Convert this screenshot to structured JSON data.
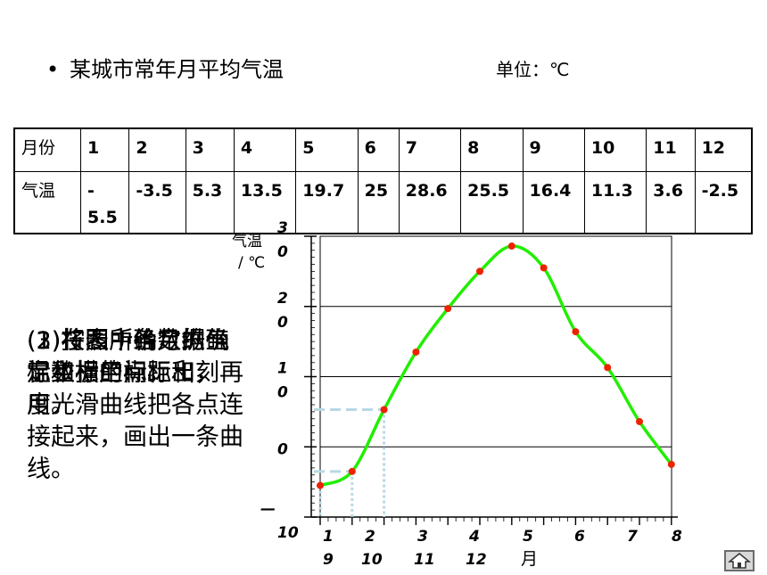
{
  "slide": {
    "bullet_symbol": "•",
    "title": "某城市常年月平均气温",
    "unit": "单位：℃"
  },
  "table": {
    "rows": [
      {
        "label": "月份",
        "cells": [
          "1",
          "2",
          "3",
          "4",
          "5",
          "6",
          "7",
          "8",
          "9",
          "10",
          "11",
          "12"
        ]
      },
      {
        "label": "气温",
        "cells": [
          "-\n5.5",
          "-3.5",
          "5.3",
          "13.5",
          "19.7",
          "25",
          "28.6",
          "25.5",
          "16.4",
          "11.3",
          "3.6",
          "-2.5"
        ]
      }
    ]
  },
  "side_text": {
    "layers": [
      "(3)将表中各月的气温数据用点标出，再用光滑曲线把各点连接起来，画出一条曲线。",
      "(1)在图中确定纵坐标和横坐标。",
      "(2)按照所给数据确定坐标的间距和刻度。"
    ]
  },
  "chart_data": {
    "type": "line",
    "title": "",
    "ylabel": "气温 / ℃",
    "xlabel": "月",
    "y_ticks": [
      {
        "value": 30,
        "label": "3\n0"
      },
      {
        "value": 20,
        "label": "2\n0"
      },
      {
        "value": 10,
        "label": "1\n0"
      },
      {
        "value": 0,
        "label": "0"
      },
      {
        "value": -10,
        "label": "—\n10"
      }
    ],
    "x_ticks": [
      {
        "value": 1,
        "label": "1\n9"
      },
      {
        "value": 2,
        "label": "2\n10"
      },
      {
        "value": 3,
        "label": "3\n11"
      },
      {
        "value": 4,
        "label": "4\n12"
      },
      {
        "value": 5,
        "label": "5\n月"
      },
      {
        "value": 6,
        "label": "6"
      },
      {
        "value": 7,
        "label": "7"
      },
      {
        "value": 8,
        "label": "8"
      }
    ],
    "x": [
      1,
      2,
      3,
      4,
      5,
      6,
      7,
      8,
      9,
      10,
      11,
      12
    ],
    "y": [
      -5.5,
      -3.5,
      5.3,
      13.5,
      19.7,
      25,
      28.6,
      25.5,
      16.4,
      11.3,
      3.6,
      -2.5
    ],
    "ylim": [
      -10,
      30
    ],
    "gridlines_y": [
      30,
      20,
      10,
      0
    ],
    "highlight_points": [
      2,
      3
    ],
    "colors": {
      "curve": "#22ee00",
      "point": "#ee2200",
      "guide": "#b7d9e3"
    }
  }
}
